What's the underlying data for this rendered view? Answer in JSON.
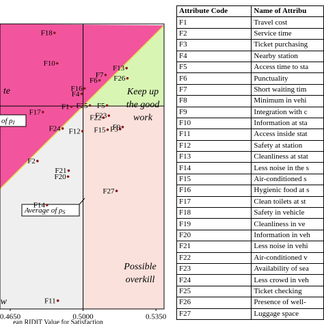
{
  "chart_data": {
    "type": "scatter",
    "x_label": "ean RIDIT Value for Satisfaction",
    "xlim": [
      0.4601,
      0.5389
    ],
    "ylim": [
      0.4022,
      0.5396
    ],
    "xticks": [
      {
        "value": 0.465,
        "label": "0.4650"
      },
      {
        "value": 0.5,
        "label": "0.5000"
      },
      {
        "value": 0.535,
        "label": "0.5350"
      }
    ],
    "point_color": "#8b1a1a",
    "labels": [
      "F18",
      "F10",
      "F13",
      "F7",
      "F26",
      "F6",
      "F16",
      "F4",
      "F5",
      "F1",
      "F25",
      "F17",
      "F23",
      "F22",
      "F15",
      "F3",
      "F9",
      "F24",
      "F12",
      "F2",
      "F21",
      "F20",
      "F27",
      "F14",
      "F11"
    ],
    "x": [
      0.4863,
      0.4876,
      0.5209,
      0.5108,
      0.5213,
      0.5079,
      0.5007,
      0.4993,
      0.5115,
      0.4944,
      0.5033,
      0.4807,
      0.5124,
      0.5098,
      0.5118,
      0.5178,
      0.519,
      0.4902,
      0.4997,
      0.4781,
      0.4931,
      0.4928,
      0.5161,
      0.4827,
      0.4879
    ],
    "y": [
      0.5353,
      0.5206,
      0.5183,
      0.515,
      0.5134,
      0.5124,
      0.5085,
      0.5059,
      0.5003,
      0.4997,
      0.5003,
      0.4971,
      0.4954,
      0.4944,
      0.4886,
      0.4889,
      0.4899,
      0.4892,
      0.4879,
      0.4735,
      0.4689,
      0.466,
      0.4591,
      0.4523,
      0.4062
    ],
    "quadrants": {
      "top_left": {
        "lines": [
          "te"
        ],
        "color": "#f2559d"
      },
      "top_right": {
        "lines": [
          "Keep up",
          "the good",
          "work"
        ],
        "color": "#d8f5b4"
      },
      "bottom_right": {
        "lines": [
          "Possible",
          "overkill"
        ],
        "color": "#fbe1dc"
      },
      "bottom_left": {
        "lines": [
          "w"
        ],
        "color": "#efefef"
      }
    },
    "annotations": [
      {
        "text": "of ρ",
        "sub": "I"
      },
      {
        "text": "Average of ρ",
        "sub": "S"
      }
    ]
  },
  "table": {
    "header": [
      "Attribute Code",
      "Name of Attribu"
    ],
    "rows": [
      [
        "F1",
        "Travel cost"
      ],
      [
        "F2",
        "Service time"
      ],
      [
        "F3",
        "Ticket purchasing"
      ],
      [
        "F4",
        "Nearby station"
      ],
      [
        "F5",
        "Access time to sta"
      ],
      [
        "F6",
        "Punctuality"
      ],
      [
        "F7",
        "Short waiting tim"
      ],
      [
        "F8",
        "Minimum in vehi"
      ],
      [
        "F9",
        "Integration with c"
      ],
      [
        "F10",
        "Information at sta"
      ],
      [
        "F11",
        "Access inside stat"
      ],
      [
        "F12",
        "Safety at station"
      ],
      [
        "F13",
        "Cleanliness at stat"
      ],
      [
        "F14",
        "Less noise in the s"
      ],
      [
        "F15",
        "Air-conditioned s"
      ],
      [
        "F16",
        "Hygienic food at s"
      ],
      [
        "F17",
        "Clean toilets at st"
      ],
      [
        "F18",
        "Safety in vehicle"
      ],
      [
        "F19",
        "Cleanliness in ve"
      ],
      [
        "F20",
        "Information in veh"
      ],
      [
        "F21",
        "Less noise in vehi"
      ],
      [
        "F22",
        "Air-conditioned v"
      ],
      [
        "F23",
        "Availability of sea"
      ],
      [
        "F24",
        "Less crowd in veh"
      ],
      [
        "F25",
        "Ticket checking"
      ],
      [
        "F26",
        "Presence of well-"
      ],
      [
        "F27",
        "Luggage space"
      ]
    ]
  }
}
